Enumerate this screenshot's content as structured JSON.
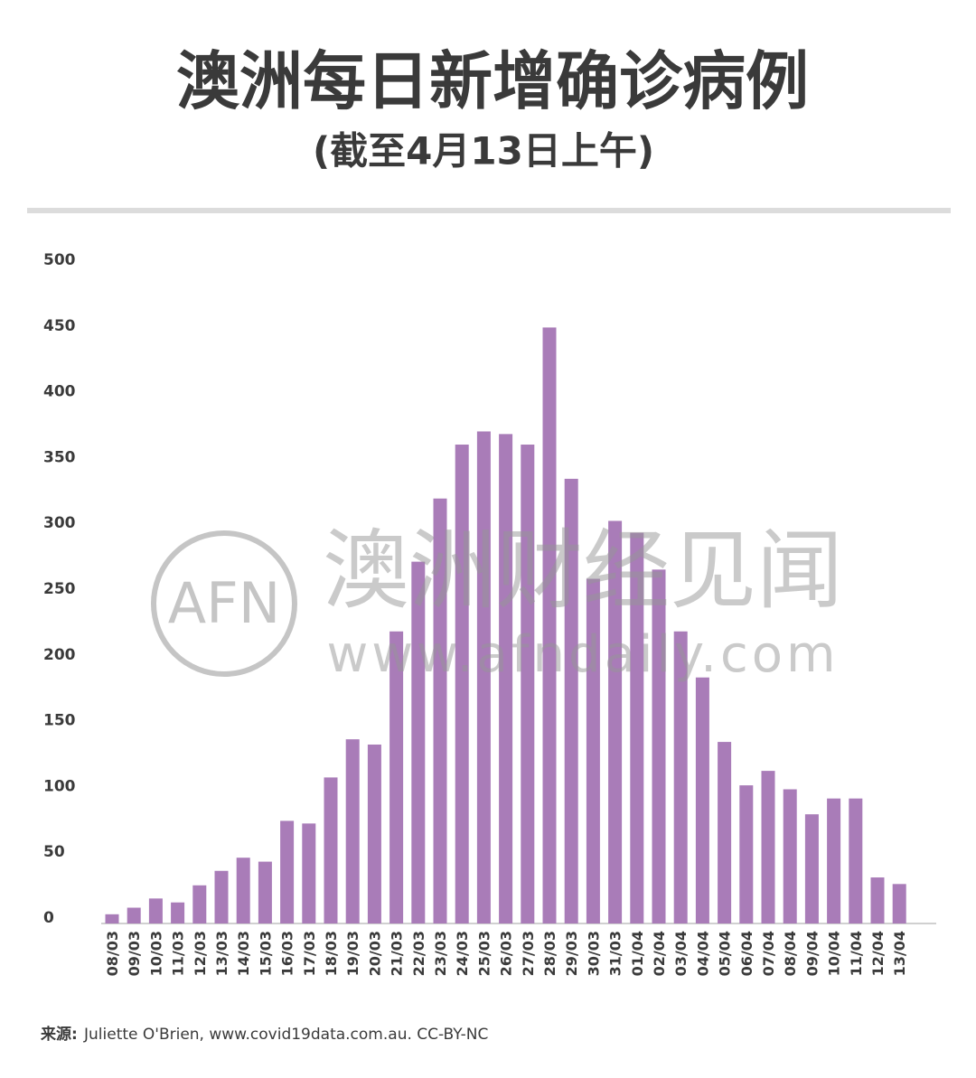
{
  "chart_data": {
    "type": "bar",
    "title": "澳洲每日新增确诊病例",
    "subtitle": "(截至4月13日上午)",
    "categories": [
      "08/03",
      "09/03",
      "10/03",
      "11/03",
      "12/03",
      "13/03",
      "14/03",
      "15/03",
      "16/03",
      "17/03",
      "18/03",
      "19/03",
      "20/03",
      "21/03",
      "22/03",
      "23/03",
      "24/03",
      "25/03",
      "26/03",
      "27/03",
      "28/03",
      "29/03",
      "30/03",
      "31/03",
      "01/04",
      "02/04",
      "03/04",
      "04/04",
      "05/04",
      "06/04",
      "07/04",
      "08/04",
      "09/04",
      "10/04",
      "11/04",
      "12/04",
      "13/04"
    ],
    "values": [
      7,
      12,
      19,
      16,
      29,
      40,
      50,
      47,
      78,
      76,
      111,
      140,
      136,
      222,
      275,
      323,
      364,
      374,
      372,
      364,
      453,
      338,
      262,
      306,
      297,
      269,
      222,
      187,
      138,
      105,
      116,
      102,
      83,
      95,
      95,
      35,
      30
    ],
    "color": "#a97cb8",
    "ylim": [
      0,
      500
    ],
    "yticks": [
      0,
      50,
      100,
      150,
      200,
      250,
      300,
      350,
      400,
      450,
      500
    ],
    "grid": false,
    "source_label": "来源:",
    "source": "Juliette O'Brien, www.covid19data.com.au. CC-BY-NC",
    "watermark": {
      "logo": "AFN",
      "name": "澳洲财经见闻",
      "url": "www.afndaily.com"
    }
  }
}
